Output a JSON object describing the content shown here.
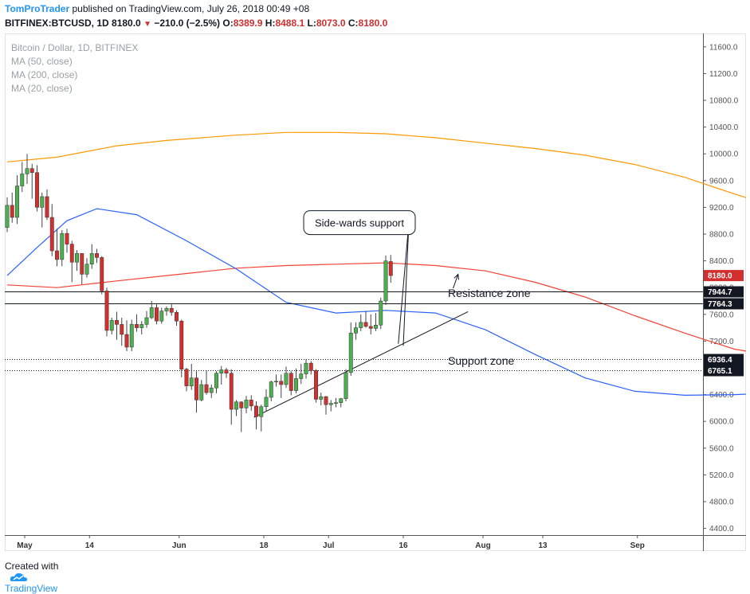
{
  "header": {
    "author": "TomProTrader",
    "published_text": "published on TradingView.com, July 26, 2018 00:49 +08",
    "symbol": "BITFINEX:BTCUSD, 1D",
    "last": "8180.0",
    "change": "−210.0 (−2.5%)",
    "o_label": "O:",
    "o_value": "8389.9",
    "h_label": "H:",
    "h_value": "8488.1",
    "l_label": "L:",
    "l_value": "8073.0",
    "c_label": "C:",
    "c_value": "8180.0"
  },
  "footer": {
    "created_with": "Created with",
    "brand": "TradingView"
  },
  "colors": {
    "up": "#4caf50",
    "down": "#d32f2f",
    "ma50": "#f44336",
    "ma200": "#ff9800",
    "ma20": "#2962ff",
    "tag": "#131722",
    "last_tag": "#d32f2f"
  },
  "chart_data": {
    "type": "candlestick",
    "title": "Bitcoin / Dollar, 1D, BITFINEX",
    "legend": [
      "MA (50, close)",
      "MA (200, close)",
      "MA (20, close)"
    ],
    "ylim": [
      4300,
      11800
    ],
    "y_ticks": [
      4400,
      4800,
      5200,
      5600,
      6000,
      6400,
      6800,
      7200,
      7600,
      8000,
      8400,
      8800,
      9200,
      9600,
      10000,
      10400,
      10800,
      11200,
      11600
    ],
    "y_tick_labels": [
      "4400.0",
      "4800.0",
      "5200.0",
      "5600.0",
      "6000.0",
      "6400.0",
      "6800.0",
      "7200.0",
      "7600.0",
      "8000.0",
      "8400.0",
      "8800.0",
      "9200.0",
      "9600.0",
      "10000.0",
      "10400.0",
      "10800.0",
      "11200.0",
      "11600.0"
    ],
    "x_start": "2018-04-27",
    "x_end": "2018-09-05",
    "x_ticks": [
      {
        "date": "2018-05-01",
        "label": "May"
      },
      {
        "date": "2018-05-14",
        "label": "14"
      },
      {
        "date": "2018-06-01",
        "label": "Jun"
      },
      {
        "date": "2018-06-18",
        "label": "18"
      },
      {
        "date": "2018-07-01",
        "label": "Jul"
      },
      {
        "date": "2018-07-16",
        "label": "16"
      },
      {
        "date": "2018-08-01",
        "label": "Aug"
      },
      {
        "date": "2018-08-13",
        "label": "13"
      },
      {
        "date": "2018-09-01",
        "label": "Sep"
      }
    ],
    "first_date": "2018-04-27",
    "candles": [
      [
        8900,
        9350,
        8830,
        9230
      ],
      [
        9230,
        9420,
        8970,
        9050
      ],
      [
        9050,
        9680,
        8950,
        9520
      ],
      [
        9520,
        9880,
        9430,
        9700
      ],
      [
        9700,
        10000,
        9550,
        9780
      ],
      [
        9780,
        9850,
        9330,
        9720
      ],
      [
        9720,
        9830,
        9140,
        9200
      ],
      [
        9200,
        9420,
        8900,
        9360
      ],
      [
        9360,
        9470,
        9010,
        9050
      ],
      [
        9050,
        9250,
        8470,
        8550
      ],
      [
        8550,
        8880,
        8320,
        8420
      ],
      [
        8420,
        8860,
        8320,
        8810
      ],
      [
        8810,
        8880,
        8520,
        8650
      ],
      [
        8650,
        8700,
        8080,
        8380
      ],
      [
        8380,
        8560,
        8250,
        8510
      ],
      [
        8510,
        8510,
        8050,
        8200
      ],
      [
        8200,
        8440,
        8150,
        8350
      ],
      [
        8350,
        8650,
        8280,
        8510
      ],
      [
        8510,
        8580,
        8370,
        8450
      ],
      [
        8450,
        8470,
        7900,
        7950
      ],
      [
        7950,
        8000,
        7270,
        7360
      ],
      [
        7360,
        7550,
        7300,
        7510
      ],
      [
        7510,
        7640,
        7220,
        7450
      ],
      [
        7450,
        7550,
        7130,
        7300
      ],
      [
        7300,
        7510,
        7050,
        7110
      ],
      [
        7110,
        7520,
        7050,
        7450
      ],
      [
        7450,
        7600,
        7340,
        7400
      ],
      [
        7400,
        7500,
        7300,
        7450
      ],
      [
        7450,
        7650,
        7400,
        7550
      ],
      [
        7550,
        7800,
        7530,
        7700
      ],
      [
        7700,
        7750,
        7450,
        7500
      ],
      [
        7500,
        7700,
        7460,
        7650
      ],
      [
        7650,
        7720,
        7580,
        7690
      ],
      [
        7690,
        7750,
        7580,
        7630
      ],
      [
        7630,
        7660,
        7430,
        7500
      ],
      [
        7500,
        7520,
        6660,
        6780
      ],
      [
        6780,
        6800,
        6450,
        6530
      ],
      [
        6530,
        6860,
        6470,
        6650
      ],
      [
        6650,
        6750,
        6130,
        6320
      ],
      [
        6320,
        6620,
        6300,
        6550
      ],
      [
        6550,
        6760,
        6400,
        6430
      ],
      [
        6430,
        6550,
        6350,
        6500
      ],
      [
        6500,
        6750,
        6420,
        6720
      ],
      [
        6720,
        6830,
        6550,
        6770
      ],
      [
        6770,
        6800,
        6650,
        6720
      ],
      [
        6720,
        6780,
        5950,
        6180
      ],
      [
        6180,
        6320,
        6080,
        6290
      ],
      [
        6290,
        6300,
        5840,
        6200
      ],
      [
        6200,
        6380,
        6120,
        6320
      ],
      [
        6320,
        6390,
        6160,
        6230
      ],
      [
        6230,
        6300,
        5880,
        6070
      ],
      [
        6070,
        6250,
        5850,
        6220
      ],
      [
        6220,
        6480,
        6150,
        6360
      ],
      [
        6360,
        6610,
        6300,
        6590
      ],
      [
        6590,
        6700,
        6520,
        6600
      ],
      [
        6600,
        6700,
        6350,
        6550
      ],
      [
        6550,
        6820,
        6500,
        6720
      ],
      [
        6720,
        6750,
        6390,
        6460
      ],
      [
        6460,
        6790,
        6420,
        6640
      ],
      [
        6640,
        6860,
        6560,
        6710
      ],
      [
        6710,
        6930,
        6640,
        6870
      ],
      [
        6870,
        6900,
        6700,
        6760
      ],
      [
        6760,
        6780,
        6280,
        6330
      ],
      [
        6330,
        6430,
        6240,
        6370
      ],
      [
        6370,
        6380,
        6100,
        6250
      ],
      [
        6250,
        6320,
        6150,
        6270
      ],
      [
        6270,
        6350,
        6210,
        6280
      ],
      [
        6280,
        6350,
        6210,
        6340
      ],
      [
        6340,
        6780,
        6300,
        6730
      ],
      [
        6730,
        7480,
        6680,
        7320
      ],
      [
        7320,
        7480,
        7220,
        7400
      ],
      [
        7400,
        7600,
        7350,
        7480
      ],
      [
        7480,
        7650,
        7400,
        7420
      ],
      [
        7420,
        7600,
        7300,
        7390
      ],
      [
        7390,
        7620,
        7350,
        7440
      ],
      [
        7440,
        7850,
        7380,
        7800
      ],
      [
        7800,
        8480,
        7740,
        8400
      ],
      [
        8390,
        8488,
        8073,
        8180
      ]
    ],
    "ma200": [
      [
        0,
        9880
      ],
      [
        10,
        9950
      ],
      [
        22,
        10120
      ],
      [
        32,
        10200
      ],
      [
        46,
        10280
      ],
      [
        56,
        10320
      ],
      [
        66,
        10320
      ],
      [
        76,
        10300
      ],
      [
        86,
        10240
      ],
      [
        96,
        10160
      ],
      [
        106,
        10080
      ],
      [
        116,
        9980
      ],
      [
        126,
        9840
      ],
      [
        136,
        9650
      ],
      [
        146,
        9400
      ],
      [
        156,
        9170
      ],
      [
        166,
        8960
      ],
      [
        176,
        8780
      ],
      [
        186,
        8650
      ]
    ],
    "ma50": [
      [
        0,
        8040
      ],
      [
        10,
        8000
      ],
      [
        22,
        8100
      ],
      [
        32,
        8180
      ],
      [
        46,
        8290
      ],
      [
        56,
        8330
      ],
      [
        66,
        8350
      ],
      [
        76,
        8370
      ],
      [
        86,
        8330
      ],
      [
        96,
        8250
      ],
      [
        106,
        8080
      ],
      [
        116,
        7860
      ],
      [
        126,
        7580
      ],
      [
        136,
        7320
      ],
      [
        146,
        7080
      ],
      [
        156,
        6960
      ],
      [
        166,
        6860
      ],
      [
        176,
        6800
      ],
      [
        186,
        6790
      ]
    ],
    "ma20": [
      [
        0,
        8180
      ],
      [
        6,
        8600
      ],
      [
        12,
        9000
      ],
      [
        18,
        9180
      ],
      [
        26,
        9090
      ],
      [
        36,
        8700
      ],
      [
        46,
        8280
      ],
      [
        56,
        7780
      ],
      [
        66,
        7620
      ],
      [
        76,
        7660
      ],
      [
        86,
        7620
      ],
      [
        96,
        7370
      ],
      [
        106,
        7000
      ],
      [
        116,
        6650
      ],
      [
        126,
        6450
      ],
      [
        136,
        6390
      ],
      [
        146,
        6400
      ],
      [
        156,
        6430
      ],
      [
        166,
        6420
      ],
      [
        172,
        6560
      ],
      [
        178,
        6770
      ],
      [
        184,
        6940
      ],
      [
        186,
        6980
      ]
    ],
    "levels": [
      {
        "label": "7944.7",
        "value": 7944.7,
        "style": "solid",
        "x_start": "2018-04-27"
      },
      {
        "label": "7764.3",
        "value": 7764.3,
        "style": "solid",
        "x_start": "2018-04-27"
      },
      {
        "label": "6936.4",
        "value": 6936.4,
        "style": "dotted",
        "x_start": "2018-04-27"
      },
      {
        "label": "6765.1",
        "value": 6765.1,
        "style": "dotted",
        "x_start": "2018-04-27"
      }
    ],
    "last_price": {
      "label": "8180.0",
      "value": 8180.0
    },
    "zone_labels": [
      {
        "text": "Resistance zone",
        "date": "2018-07-24",
        "value": 7860
      },
      {
        "text": "Support zone",
        "date": "2018-07-24",
        "value": 6850
      }
    ],
    "trendline": {
      "from": {
        "date": "2018-06-16",
        "value": 6060
      },
      "to": {
        "date": "2018-07-29",
        "value": 7640
      }
    },
    "callout": {
      "text": "Side-wards support",
      "box_date": "2018-06-26",
      "box_value": 9150,
      "targets": [
        {
          "date": "2018-07-15",
          "value": 7160
        },
        {
          "date": "2018-07-16",
          "value": 7130
        }
      ]
    },
    "arrow": {
      "from": {
        "date": "2018-07-26",
        "value": 7990
      },
      "to": {
        "date": "2018-07-27",
        "value": 8200
      }
    }
  }
}
